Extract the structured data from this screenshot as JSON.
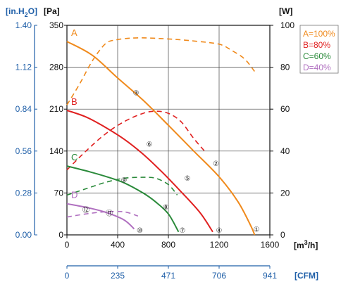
{
  "chart_data": {
    "type": "line",
    "axes": {
      "x": {
        "unit_prefix": "[m",
        "unit_sup": "3",
        "unit_suffix": "/h]",
        "ticks": [
          "0",
          "400",
          "800",
          "1200",
          "1600"
        ],
        "values": [
          0,
          400,
          800,
          1200,
          1600
        ],
        "range": [
          0,
          1600
        ]
      },
      "x_cfm": {
        "unit": "[CFM]",
        "ticks": [
          "0",
          "235",
          "471",
          "706",
          "941"
        ]
      },
      "y_pa": {
        "unit": "[Pa]",
        "ticks": [
          "0",
          "70",
          "140",
          "210",
          "280",
          "350"
        ],
        "values": [
          0,
          70,
          140,
          210,
          280,
          350
        ],
        "range": [
          0,
          350
        ]
      },
      "y_inh2o": {
        "unit_prefix": "[in.H",
        "unit_sub": "2",
        "unit_suffix": "O]",
        "ticks": [
          "0.00",
          "0.28",
          "0.56",
          "0.84",
          "1.12",
          "1.40"
        ]
      },
      "y_w": {
        "unit": "[W]",
        "ticks": [
          "0",
          "20",
          "40",
          "60",
          "80",
          "100"
        ],
        "values": [
          0,
          20,
          40,
          60,
          80,
          100
        ],
        "range": [
          0,
          100
        ]
      }
    },
    "grid": true,
    "legend_position": "top-right",
    "legend": [
      "A=100%",
      "B=80%",
      "C=60%",
      "D=40%"
    ],
    "series": [
      {
        "label": "A",
        "color": "#f08a1c",
        "pressure": [
          [
            0,
            323
          ],
          [
            200,
            300
          ],
          [
            400,
            262
          ],
          [
            600,
            225
          ],
          [
            800,
            183
          ],
          [
            1000,
            140
          ],
          [
            1200,
            97
          ],
          [
            1350,
            55
          ],
          [
            1450,
            15
          ],
          [
            1480,
            0
          ]
        ],
        "power": [
          [
            0,
            62
          ],
          [
            100,
            72
          ],
          [
            200,
            83
          ],
          [
            300,
            91
          ],
          [
            380,
            93
          ],
          [
            550,
            94
          ],
          [
            800,
            93.5
          ],
          [
            1000,
            92.5
          ],
          [
            1200,
            91
          ],
          [
            1300,
            88
          ],
          [
            1400,
            84
          ],
          [
            1480,
            78
          ]
        ]
      },
      {
        "label": "B",
        "color": "#e02020",
        "pressure": [
          [
            0,
            208
          ],
          [
            150,
            197
          ],
          [
            300,
            180
          ],
          [
            450,
            160
          ],
          [
            600,
            135
          ],
          [
            750,
            105
          ],
          [
            900,
            72
          ],
          [
            1050,
            37
          ],
          [
            1150,
            5
          ]
        ],
        "power": [
          [
            0,
            31
          ],
          [
            150,
            40
          ],
          [
            300,
            48
          ],
          [
            450,
            54
          ],
          [
            600,
            58
          ],
          [
            700,
            59
          ],
          [
            800,
            58
          ],
          [
            900,
            54
          ],
          [
            1000,
            46
          ],
          [
            1100,
            39
          ]
        ]
      },
      {
        "label": "C",
        "color": "#2a8a3a",
        "pressure": [
          [
            0,
            115
          ],
          [
            150,
            107
          ],
          [
            300,
            98
          ],
          [
            450,
            87
          ],
          [
            600,
            70
          ],
          [
            700,
            55
          ],
          [
            800,
            35
          ],
          [
            880,
            5
          ]
        ],
        "power": [
          [
            0,
            19
          ],
          [
            150,
            22
          ],
          [
            300,
            25
          ],
          [
            450,
            27
          ],
          [
            600,
            27.5
          ],
          [
            700,
            27
          ],
          [
            800,
            24
          ],
          [
            870,
            19
          ]
        ]
      },
      {
        "label": "D",
        "color": "#b070c0",
        "pressure": [
          [
            0,
            52
          ],
          [
            150,
            46
          ],
          [
            300,
            38
          ],
          [
            450,
            25
          ],
          [
            530,
            10
          ]
        ],
        "power": [
          [
            0,
            8.5
          ],
          [
            150,
            10
          ],
          [
            300,
            11
          ],
          [
            450,
            11
          ],
          [
            560,
            9
          ]
        ]
      }
    ],
    "operating_points": [
      {
        "label": "①",
        "x": 1495,
        "y": 10
      },
      {
        "label": "②",
        "x": 1175,
        "y": 120
      },
      {
        "label": "③",
        "x": 545,
        "y": 238
      },
      {
        "label": "④",
        "x": 1200,
        "y": 8
      },
      {
        "label": "⑤",
        "x": 950,
        "y": 95
      },
      {
        "label": "⑥",
        "x": 650,
        "y": 152
      },
      {
        "label": "⑦",
        "x": 910,
        "y": 8
      },
      {
        "label": "⑧",
        "x": 780,
        "y": 47
      },
      {
        "label": "⑨",
        "x": 450,
        "y": 92
      },
      {
        "label": "⑩",
        "x": 575,
        "y": 8
      },
      {
        "label": "⑪",
        "x": 335,
        "y": 37
      },
      {
        "label": "⑫",
        "x": 150,
        "y": 42
      }
    ]
  }
}
